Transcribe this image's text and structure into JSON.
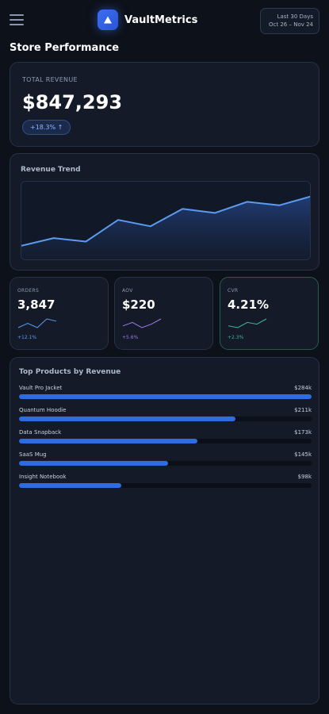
{
  "header": {
    "brand": "VaultMetrics",
    "date_range_label": "Last 30 Days",
    "date_range_dates": "Oct 26 – Nov 24"
  },
  "page_title": "Store Performance",
  "revenue": {
    "label": "TOTAL REVENUE",
    "value": "$847,293",
    "delta": "+18.3% ↑"
  },
  "trend": {
    "title": "Revenue Trend",
    "line_color": "#5b9bf0",
    "values": [
      15,
      26,
      21,
      52,
      43,
      68,
      62,
      78,
      73,
      86
    ]
  },
  "kpis": [
    {
      "label": "ORDERS",
      "value": "3,847",
      "delta": "+12.1%",
      "color": "#5b9bf0",
      "spark": [
        4,
        6,
        4,
        8,
        7
      ]
    },
    {
      "label": "AOV",
      "value": "$220",
      "delta": "+5.6%",
      "color": "#9b7cf0",
      "spark": [
        4,
        6,
        3,
        5,
        8
      ]
    },
    {
      "label": "CVR",
      "value": "4.21%",
      "delta": "+2.3%",
      "color": "#3fb59a",
      "spark": [
        5,
        4,
        7,
        6,
        9
      ]
    }
  ],
  "products": {
    "title": "Top Products by Revenue",
    "items": [
      {
        "name": "Vault Pro Jacket",
        "value": "$284k",
        "share": 1.0
      },
      {
        "name": "Quantum Hoodie",
        "value": "$211k",
        "share": 0.74
      },
      {
        "name": "Data Snapback",
        "value": "$173k",
        "share": 0.61
      },
      {
        "name": "SaaS Mug",
        "value": "$145k",
        "share": 0.51
      },
      {
        "name": "Insight Notebook",
        "value": "$98k",
        "share": 0.35
      }
    ]
  }
}
